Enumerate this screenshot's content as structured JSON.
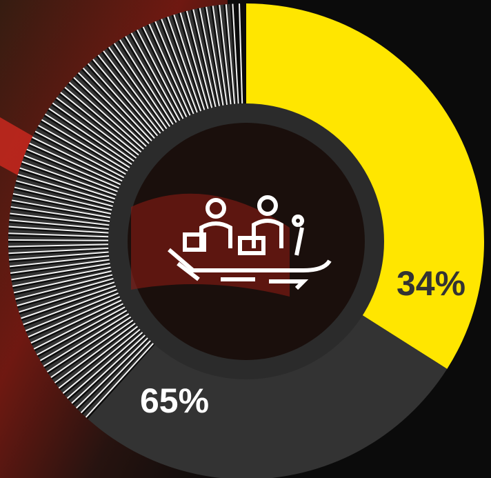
{
  "chart_data": {
    "type": "donut",
    "values": [
      34,
      65
    ],
    "value_labels": [
      "34%",
      "65%"
    ],
    "colors": [
      "#ffe600",
      "#333333"
    ]
  }
}
